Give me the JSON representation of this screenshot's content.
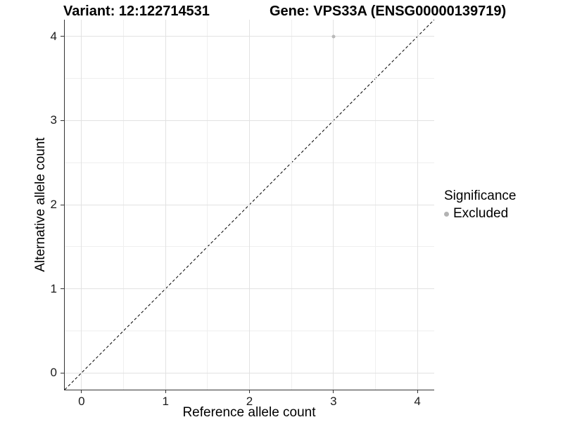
{
  "figure": {
    "title_variant": "Variant: 12:122714531",
    "title_gene": "Gene: VPS33A (ENSG00000139719)"
  },
  "chart_data": {
    "type": "scatter",
    "title": "Variant: 12:122714531  /  Gene: VPS33A (ENSG00000139719)",
    "xlabel": "Reference allele count",
    "ylabel": "Alternative allele count",
    "xlim": [
      -0.2,
      4.2
    ],
    "ylim": [
      -0.2,
      4.2
    ],
    "x_ticks": [
      0,
      1,
      2,
      3,
      4
    ],
    "y_ticks": [
      0,
      1,
      2,
      3,
      4
    ],
    "x_minor_ticks": [
      0.5,
      1.5,
      2.5,
      3.5
    ],
    "y_minor_ticks": [
      0.5,
      1.5,
      2.5,
      3.5
    ],
    "grid": true,
    "points": [
      {
        "x": 3,
        "y": 4,
        "series": "Excluded"
      }
    ],
    "reference_line": {
      "type": "identity",
      "slope": 1,
      "intercept": 0,
      "style": "dashed",
      "color": "#000000"
    },
    "legend": {
      "title": "Significance",
      "position": "right",
      "items": [
        {
          "label": "Excluded",
          "color": "#b3b3b3"
        }
      ]
    },
    "colors": {
      "point": "#b9b9b9",
      "grid_major": "#e2e2e2",
      "grid_minor": "#efefef",
      "axis_line": "#333333",
      "text": "#000000"
    }
  }
}
